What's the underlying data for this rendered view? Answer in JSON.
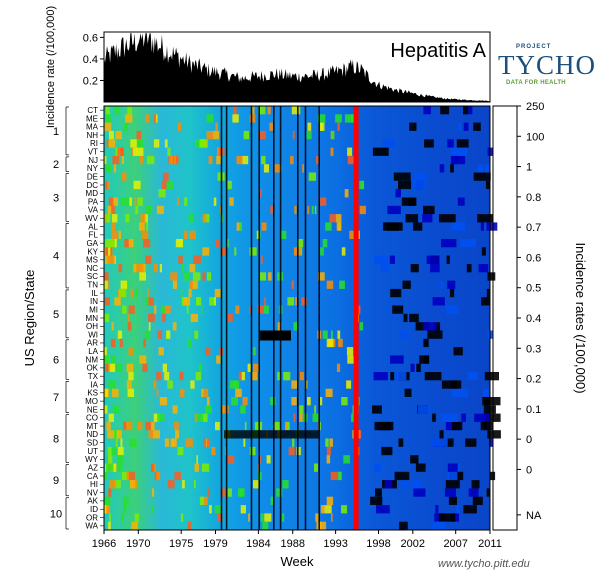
{
  "chart_data": {
    "type": "heatmap",
    "title": "Hepatitis A",
    "xlabel": "Week",
    "ylabel": "US Region/State",
    "x_ticks": [
      "1966",
      "1970",
      "1975",
      "1979",
      "1984",
      "1988",
      "1993",
      "1998",
      "2002",
      "2007",
      "2011"
    ],
    "x_range": [
      1966,
      2011
    ],
    "regions": [
      "1",
      "2",
      "3",
      "4",
      "5",
      "6",
      "7",
      "8",
      "9",
      "10"
    ],
    "states": [
      "CT",
      "ME",
      "MA",
      "NH",
      "RI",
      "VT",
      "NJ",
      "NY",
      "DE",
      "DC",
      "MD",
      "PA",
      "VA",
      "WV",
      "AL",
      "FL",
      "GA",
      "KY",
      "MS",
      "NC",
      "SC",
      "TN",
      "IL",
      "IN",
      "MI",
      "MN",
      "OH",
      "WI",
      "AR",
      "LA",
      "NM",
      "OK",
      "TX",
      "IA",
      "KS",
      "MO",
      "NE",
      "CO",
      "MT",
      "ND",
      "SD",
      "UT",
      "WY",
      "AZ",
      "CA",
      "HI",
      "NV",
      "AK",
      "ID",
      "OR",
      "WA"
    ],
    "state_regions": [
      1,
      1,
      1,
      1,
      1,
      1,
      2,
      2,
      3,
      3,
      3,
      3,
      3,
      3,
      4,
      4,
      4,
      4,
      4,
      4,
      4,
      4,
      5,
      5,
      5,
      5,
      5,
      5,
      6,
      6,
      6,
      6,
      6,
      7,
      7,
      7,
      7,
      8,
      8,
      8,
      8,
      8,
      8,
      9,
      9,
      9,
      9,
      10,
      10,
      10,
      10
    ],
    "colorbar": {
      "label": "Incidence rates (/100,000)",
      "ticks": [
        "250",
        "100",
        "1",
        "0.8",
        "0.7",
        "0.6",
        "0.5",
        "0.4",
        "0.3",
        "0.2",
        "0.1",
        "0",
        "0",
        "NA"
      ],
      "colors": [
        "#ff0000",
        "#ff3300",
        "#ff6600",
        "#ffa500",
        "#ffe600",
        "#c8f500",
        "#7ded00",
        "#28e028",
        "#00dc8c",
        "#00c8dc",
        "#0096f0",
        "#0050f0",
        "#0000c0",
        "#000000"
      ]
    },
    "top_panel": {
      "ylabel": "Incidence rate (/100,000)",
      "y_ticks": [
        0.2,
        0.4,
        0.6
      ],
      "y_range": [
        0,
        0.65
      ],
      "trend": [
        [
          1966,
          0.4
        ],
        [
          1968,
          0.5
        ],
        [
          1970,
          0.58
        ],
        [
          1971,
          0.6
        ],
        [
          1972,
          0.55
        ],
        [
          1974,
          0.45
        ],
        [
          1976,
          0.36
        ],
        [
          1978,
          0.3
        ],
        [
          1980,
          0.26
        ],
        [
          1982,
          0.22
        ],
        [
          1984,
          0.24
        ],
        [
          1986,
          0.26
        ],
        [
          1988,
          0.24
        ],
        [
          1990,
          0.24
        ],
        [
          1992,
          0.26
        ],
        [
          1994,
          0.3
        ],
        [
          1995,
          0.33
        ],
        [
          1996,
          0.3
        ],
        [
          1997,
          0.22
        ],
        [
          1998,
          0.16
        ],
        [
          2000,
          0.11
        ],
        [
          2002,
          0.08
        ],
        [
          2004,
          0.05
        ],
        [
          2006,
          0.03
        ],
        [
          2008,
          0.02
        ],
        [
          2011,
          0.01
        ]
      ]
    }
  },
  "logo": {
    "project": "PROJECT",
    "name": "TYCHO",
    "tagline": "DATA FOR HEALTH"
  },
  "credit": "www.tycho.pitt.edu"
}
